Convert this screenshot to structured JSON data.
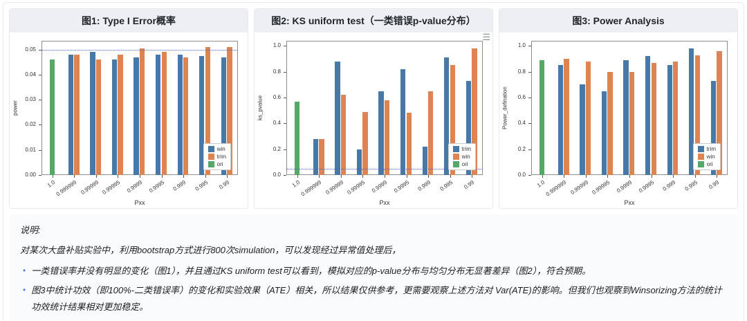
{
  "icons": {
    "menu": "☰"
  },
  "colors": {
    "blue": "#4878a8",
    "orange": "#dd8452",
    "green": "#55a868",
    "refline": "#3f63c8",
    "bullet": "#5b78f0"
  },
  "chart_data": [
    {
      "type": "bar",
      "title": "图1: Type I Error概率",
      "xlabel": "Pxx",
      "ylabel": "power",
      "ylim": [
        0,
        0.0535
      ],
      "yticks": [
        0,
        0.01,
        0.02,
        0.03,
        0.04,
        0.05
      ],
      "ytick_decimals": 2,
      "refline": 0.05,
      "grid": false,
      "legend_position": "lower right",
      "categories": [
        "1.0",
        "0.999999",
        "0.99999",
        "0.99995",
        "0.9999",
        "0.9995",
        "0.999",
        "0.995",
        "0.99"
      ],
      "series": [
        {
          "name": "win",
          "color": "#4878a8",
          "values": [
            null,
            0.048,
            0.049,
            0.046,
            0.047,
            0.048,
            0.048,
            0.0475,
            0.047
          ]
        },
        {
          "name": "trim",
          "color": "#dd8452",
          "values": [
            null,
            0.048,
            0.046,
            0.048,
            0.0505,
            0.049,
            0.047,
            0.051,
            0.051
          ]
        },
        {
          "name": "ori",
          "color": "#55a868",
          "values": [
            0.046,
            null,
            null,
            null,
            null,
            null,
            null,
            null,
            null
          ]
        }
      ]
    },
    {
      "type": "bar",
      "title": "图2: KS uniform test（一类错误p-value分布）",
      "xlabel": "Pxx",
      "ylabel": "ks_pvalue",
      "ylim": [
        0,
        1.04
      ],
      "yticks": [
        0,
        0.2,
        0.4,
        0.6,
        0.8,
        1.0
      ],
      "ytick_decimals": 1,
      "refline": 0.05,
      "grid": false,
      "legend_position": "lower right",
      "categories": [
        "1.0",
        "0.999999",
        "0.99999",
        "0.99995",
        "0.9999",
        "0.9995",
        "0.999",
        "0.995",
        "0.99"
      ],
      "series": [
        {
          "name": "trim",
          "color": "#4878a8",
          "values": [
            null,
            0.28,
            0.88,
            0.2,
            0.65,
            0.82,
            0.22,
            0.91,
            0.73
          ]
        },
        {
          "name": "win",
          "color": "#dd8452",
          "values": [
            null,
            0.28,
            0.62,
            0.49,
            0.58,
            0.48,
            0.65,
            0.85,
            0.98
          ]
        },
        {
          "name": "ori",
          "color": "#55a868",
          "values": [
            0.57,
            null,
            null,
            null,
            null,
            null,
            null,
            null,
            null
          ]
        }
      ]
    },
    {
      "type": "bar",
      "title": "图3: Power Analysis",
      "xlabel": "Pxx",
      "ylabel": "Power_defination",
      "ylim": [
        0,
        1.04
      ],
      "yticks": [
        0,
        0.2,
        0.4,
        0.6,
        0.8,
        1.0
      ],
      "ytick_decimals": 1,
      "refline": null,
      "grid": false,
      "legend_position": "lower right",
      "categories": [
        "1.0",
        "0.999999",
        "0.99999",
        "0.99995",
        "0.9999",
        "0.9995",
        "0.999",
        "0.995",
        "0.99"
      ],
      "series": [
        {
          "name": "trim",
          "color": "#4878a8",
          "values": [
            null,
            0.85,
            0.7,
            0.65,
            0.89,
            0.92,
            0.85,
            0.98,
            0.73
          ]
        },
        {
          "name": "win",
          "color": "#dd8452",
          "values": [
            null,
            0.9,
            0.88,
            0.8,
            0.8,
            0.87,
            0.88,
            0.93,
            0.96
          ]
        },
        {
          "name": "ori",
          "color": "#55a868",
          "values": [
            0.89,
            null,
            null,
            null,
            null,
            null,
            null,
            null,
            null
          ]
        }
      ]
    }
  ],
  "notes": {
    "label": "说明:",
    "intro": "对某次大盘补贴实验中，利用bootstrap方式进行800次simulation，可以发现经过异常值处理后，",
    "bullet_char": "•",
    "bullets": [
      "一类错误率并没有明显的变化（图1），并且通过KS uniform test可以看到，模拟对应的p-value分布与均匀分布无显著差异（图2），符合预期。",
      "图3中统计功效（即100%-二类错误率）的变化和实验效果（ATE）相关，所以结果仅供参考，更需要观察上述方法对 Var(ATE)的影响。但我们也观察到Winsorizing方法的统计功效统计结果相对更加稳定。"
    ]
  }
}
